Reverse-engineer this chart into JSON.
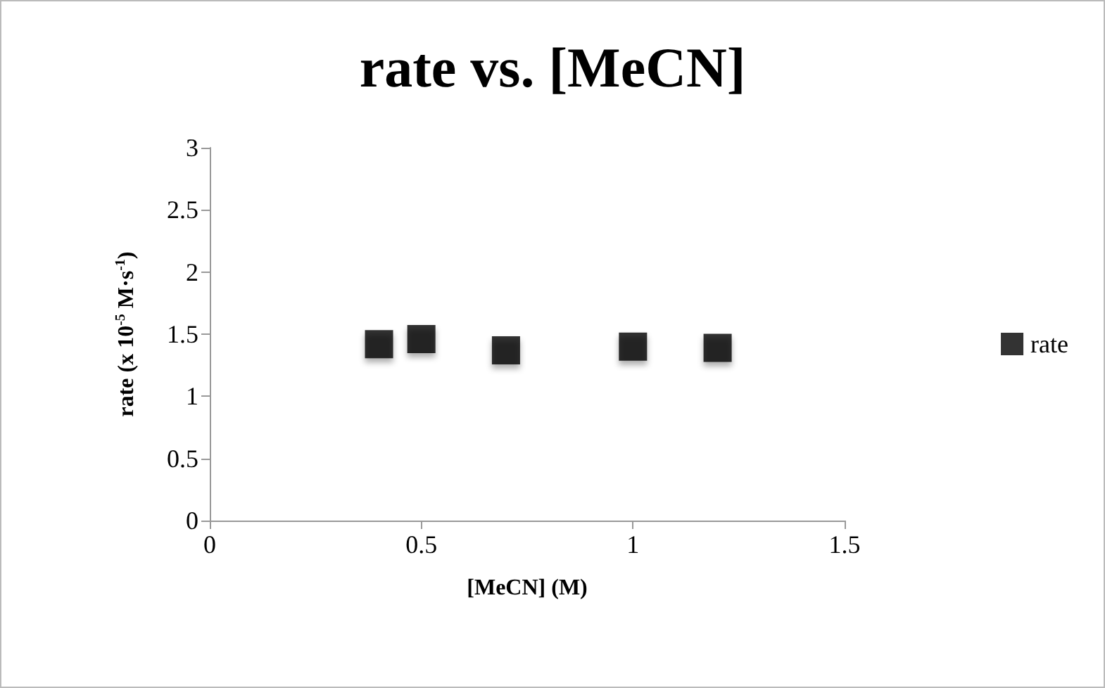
{
  "chart_data": {
    "type": "scatter",
    "title": "rate vs. [MeCN]",
    "xlabel": "[MeCN] (M)",
    "ylabel": "rate (x 10$^{-5}$ M·s$^{-1}$)",
    "x": [
      0.4,
      0.5,
      0.7,
      1.0,
      1.2
    ],
    "series": [
      {
        "name": "rate",
        "color": "#000000",
        "values": [
          1.42,
          1.46,
          1.37,
          1.4,
          1.39
        ]
      }
    ],
    "xlim": [
      0,
      1.5
    ],
    "xticks": [
      0,
      0.5,
      1,
      1.5
    ],
    "ylim": [
      0,
      3
    ],
    "yticks": [
      0,
      0.5,
      1,
      1.5,
      2,
      2.5,
      3
    ],
    "grid": false,
    "legend": "right",
    "marker": "square"
  }
}
